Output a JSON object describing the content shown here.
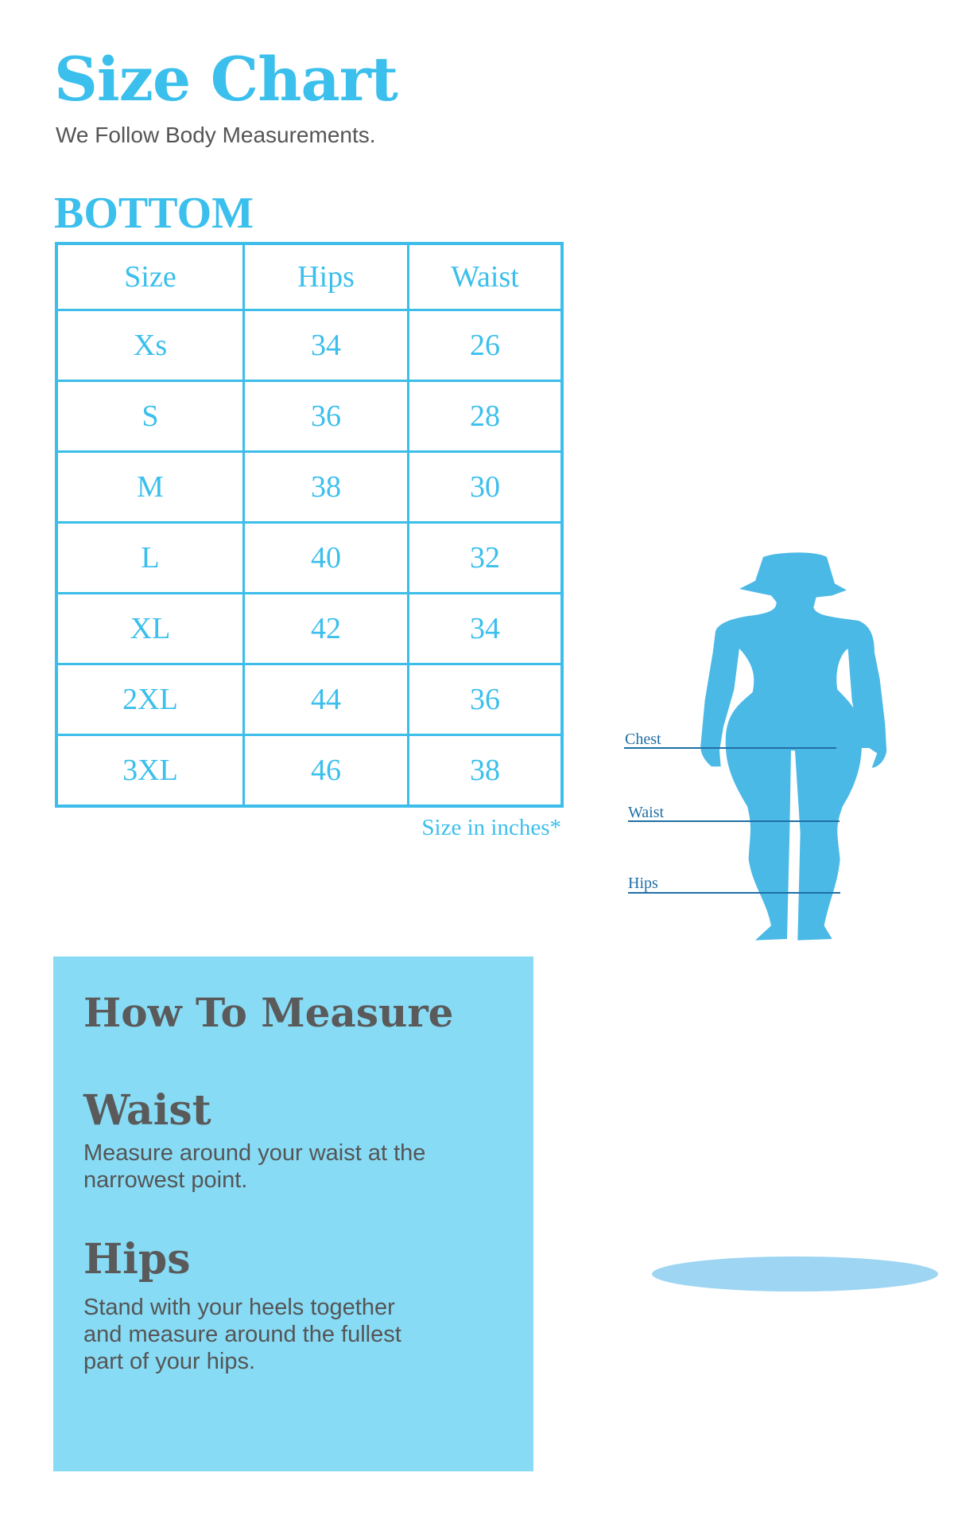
{
  "header": {
    "title": "Size Chart",
    "subtitle": "We Follow Body Measurements."
  },
  "section_title": "BOTTOM",
  "table": {
    "columns": [
      "Size",
      "Hips",
      "Waist"
    ],
    "rows": [
      [
        "Xs",
        "34",
        "26"
      ],
      [
        "S",
        "36",
        "28"
      ],
      [
        "M",
        "38",
        "30"
      ],
      [
        "L",
        "40",
        "32"
      ],
      [
        "XL",
        "42",
        "34"
      ],
      [
        "2XL",
        "44",
        "36"
      ],
      [
        "3XL",
        "46",
        "38"
      ]
    ]
  },
  "note": "Size in inches*",
  "how_to": {
    "title": "How To Measure",
    "items": [
      {
        "heading": "Waist",
        "lines": [
          "Measure around your waist at the",
          "narrowest point."
        ]
      },
      {
        "heading": "Hips",
        "lines": [
          "Stand with your heels together",
          "and measure around the fullest",
          "part of your hips."
        ]
      }
    ]
  },
  "figure": {
    "labels": [
      "Chest",
      "Waist",
      "Hips"
    ]
  },
  "colors": {
    "accent": "#3bbfec",
    "box": "#87dbf5",
    "silhouette": "#4bb9e6",
    "text": "#5a5a5a"
  }
}
